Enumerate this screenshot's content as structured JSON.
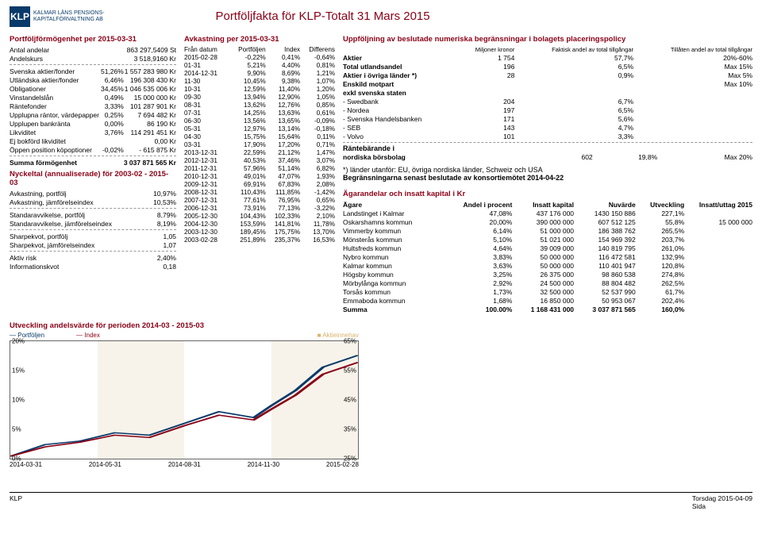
{
  "header": {
    "logo_abbr": "KLP",
    "logo_line1": "KALMAR LÄNS PENSIONS-",
    "logo_line2": "KAPITALFÖRVALTNING AB",
    "title": "Portföljfakta för KLP-Totalt 31 Mars 2015"
  },
  "col1": {
    "h1": "Portföljförmögenhet per 2015-03-31",
    "rows_top": [
      [
        "Antal andelar",
        "",
        "863 297,5409 St"
      ],
      [
        "Andelskurs",
        "",
        "3 518,9160 Kr"
      ]
    ],
    "rows_assets": [
      [
        "Svenska aktier/fonder",
        "51,26%",
        "1 557 283 980 Kr"
      ],
      [
        "Utländska aktier/fonder",
        "6,46%",
        "196 308 430 Kr"
      ],
      [
        "Obligationer",
        "34,45%",
        "1 046 535 006 Kr"
      ],
      [
        "Vinstandelslån",
        "0,49%",
        "15 000 000 Kr"
      ],
      [
        "Räntefonder",
        "3,33%",
        "101 287 901 Kr"
      ],
      [
        "Upplupna räntor, värdepapper",
        "0,25%",
        "7 694 482 Kr"
      ],
      [
        "Upplupen bankränta",
        "0,00%",
        "86 190 Kr"
      ],
      [
        "Likviditet",
        "3,76%",
        "114 291 451 Kr"
      ],
      [
        "Ej bokförd likviditet",
        "",
        "0,00 Kr"
      ],
      [
        "Öppen position köpoptioner",
        "-0,02%",
        "- 615 875 Kr"
      ]
    ],
    "sum_row": [
      "Summa förmögenhet",
      "",
      "3 037 871 565 Kr"
    ],
    "h2": "Nyckeltal (annualiserade) för 2003-02 - 2015-03",
    "k_rows1": [
      [
        "Avkastning, portfölj",
        "10,97%"
      ],
      [
        "Avkastning, jämförelseindex",
        "10,53%"
      ]
    ],
    "k_rows2": [
      [
        "Standaravvikelse, portfölj",
        "8,79%"
      ],
      [
        "Standaravvikelse, jämförelseindex",
        "8,19%"
      ]
    ],
    "k_rows3": [
      [
        "Sharpekvot, portfölj",
        "1,05"
      ],
      [
        "Sharpekvot, jämförelseindex",
        "1,07"
      ]
    ],
    "k_rows4": [
      [
        "Aktiv risk",
        "2,40%"
      ],
      [
        "Informationskvot",
        "0,18"
      ]
    ]
  },
  "col2": {
    "h": "Avkastning per 2015-03-31",
    "hdr": [
      "Från datum",
      "Portföljen",
      "Index",
      "Differens"
    ],
    "rows": [
      [
        "2015-02-28",
        "-0,22%",
        "0,41%",
        "-0,64%"
      ],
      [
        "01-31",
        "5,21%",
        "4,40%",
        "0,81%"
      ],
      [
        "2014-12-31",
        "9,90%",
        "8,69%",
        "1,21%"
      ],
      [
        "11-30",
        "10,45%",
        "9,38%",
        "1,07%"
      ],
      [
        "10-31",
        "12,59%",
        "11,40%",
        "1,20%"
      ],
      [
        "09-30",
        "13,94%",
        "12,90%",
        "1,05%"
      ],
      [
        "08-31",
        "13,62%",
        "12,76%",
        "0,85%"
      ],
      [
        "07-31",
        "14,25%",
        "13,63%",
        "0,61%"
      ],
      [
        "06-30",
        "13,56%",
        "13,65%",
        "-0,09%"
      ],
      [
        "05-31",
        "12,97%",
        "13,14%",
        "-0,18%"
      ],
      [
        "04-30",
        "15,75%",
        "15,64%",
        "0,11%"
      ],
      [
        "03-31",
        "17,90%",
        "17,20%",
        "0,71%"
      ],
      [
        "2013-12-31",
        "22,59%",
        "21,12%",
        "1,47%"
      ],
      [
        "2012-12-31",
        "40,53%",
        "37,46%",
        "3,07%"
      ],
      [
        "2011-12-31",
        "57,96%",
        "51,14%",
        "6,82%"
      ],
      [
        "2010-12-31",
        "49,01%",
        "47,07%",
        "1,93%"
      ],
      [
        "2009-12-31",
        "69,91%",
        "67,83%",
        "2,08%"
      ],
      [
        "2008-12-31",
        "110,43%",
        "111,85%",
        "-1,42%"
      ],
      [
        "2007-12-31",
        "77,61%",
        "76,95%",
        "0,65%"
      ],
      [
        "2006-12-31",
        "73,91%",
        "77,13%",
        "-3,22%"
      ],
      [
        "2005-12-30",
        "104,43%",
        "102,33%",
        "2,10%"
      ],
      [
        "2004-12-30",
        "153,59%",
        "141,81%",
        "11,78%"
      ],
      [
        "2003-12-30",
        "189,45%",
        "175,75%",
        "13,70%"
      ],
      [
        "2003-02-28",
        "251,89%",
        "235,37%",
        "16,53%"
      ]
    ]
  },
  "col3": {
    "h1": "Uppföljning av beslutade numeriska begränsningar i bolagets placeringspolicy",
    "limits_hdr": [
      "",
      "Miljoner kronor",
      "Faktisk andel av total tillgångar",
      "Tillåten andel av total tillgångar"
    ],
    "limits": [
      [
        "Aktier",
        "1 754",
        "57,7%",
        "20%-60%"
      ],
      [
        "Total utlandsandel",
        "196",
        "6,5%",
        "Max 15%"
      ],
      [
        "Aktier i övriga länder *)",
        "28",
        "0,9%",
        "Max 5%"
      ],
      [
        "Enskild motpart",
        "",
        "",
        "Max 10%"
      ],
      [
        "exkl svenska staten",
        "",
        "",
        ""
      ],
      [
        "- Swedbank",
        "204",
        "6,7%",
        ""
      ],
      [
        "- Nordea",
        "197",
        "6,5%",
        ""
      ],
      [
        "- Svenska Handelsbanken",
        "171",
        "5,6%",
        ""
      ],
      [
        "- SEB",
        "143",
        "4,7%",
        ""
      ],
      [
        "- Volvo",
        "101",
        "3,3%",
        ""
      ]
    ],
    "rante_h": "Räntebärande i",
    "rante_row": [
      "nordiska börsbolag",
      "602",
      "19,8%",
      "Max 20%"
    ],
    "note1": "*) länder utanför: EU, övriga nordiska länder, Schweiz och USA",
    "note2": "Begränsningarna senast beslutade av konsortiemötet 2014-04-22",
    "h2": "Ägarandelar och insatt kapital i Kr",
    "own_hdr": [
      "Ägare",
      "Andel i procent",
      "Insatt kapital",
      "Nuvärde",
      "Utveckling",
      "Insatt/uttag 2015"
    ],
    "owners": [
      [
        "Landstinget i Kalmar",
        "47,08%",
        "437 176 000",
        "1430 150 886",
        "227,1%",
        ""
      ],
      [
        "Oskarshamns kommun",
        "20,00%",
        "390 000 000",
        "607 512 125",
        "55,8%",
        "15 000 000"
      ],
      [
        "Vimmerby kommun",
        "6,14%",
        "51 000 000",
        "186 388 762",
        "265,5%",
        ""
      ],
      [
        "Mönsterås kommun",
        "5,10%",
        "51 021 000",
        "154 969 392",
        "203,7%",
        ""
      ],
      [
        "Hultsfreds kommun",
        "4,64%",
        "39 009 000",
        "140 819 795",
        "261,0%",
        ""
      ],
      [
        "Nybro kommun",
        "3,83%",
        "50 000 000",
        "116 472 581",
        "132,9%",
        ""
      ],
      [
        "Kalmar kommun",
        "3,63%",
        "50 000 000",
        "110 401 947",
        "120,8%",
        ""
      ],
      [
        "Högsby kommun",
        "3,25%",
        "26 375 000",
        "98 860 538",
        "274,8%",
        ""
      ],
      [
        "Mörbylånga kommun",
        "2,92%",
        "24 500 000",
        "88 804 482",
        "262,5%",
        ""
      ],
      [
        "Torsås kommun",
        "1,73%",
        "32 500 000",
        "52 537 990",
        "61,7%",
        ""
      ],
      [
        "Emmaboda kommun",
        "1,68%",
        "16 850 000",
        "50 953 067",
        "202,4%",
        ""
      ]
    ],
    "own_sum": [
      "Summa",
      "100.00%",
      "1 168 431 000",
      "3 037 871 565",
      "160,0%",
      ""
    ]
  },
  "chart": {
    "title": "Utveckling andelsvärde för perioden 2014-03 - 2015-03",
    "legend": [
      "Portföljen",
      "Index",
      "Aktieinnehav"
    ],
    "yticks_left": [
      "20%",
      "15%",
      "10%",
      "5%",
      "0%"
    ],
    "yticks_right": [
      "65%",
      "55%",
      "45%",
      "35%",
      "25%"
    ],
    "xlabels": [
      "2014-03-31",
      "2014-05-31",
      "2014-08-31",
      "2014-11-30",
      "2015-02-28"
    ]
  },
  "footer": {
    "left": "KLP",
    "right1": "Torsdag 2015-04-09",
    "right2": "Sida"
  }
}
